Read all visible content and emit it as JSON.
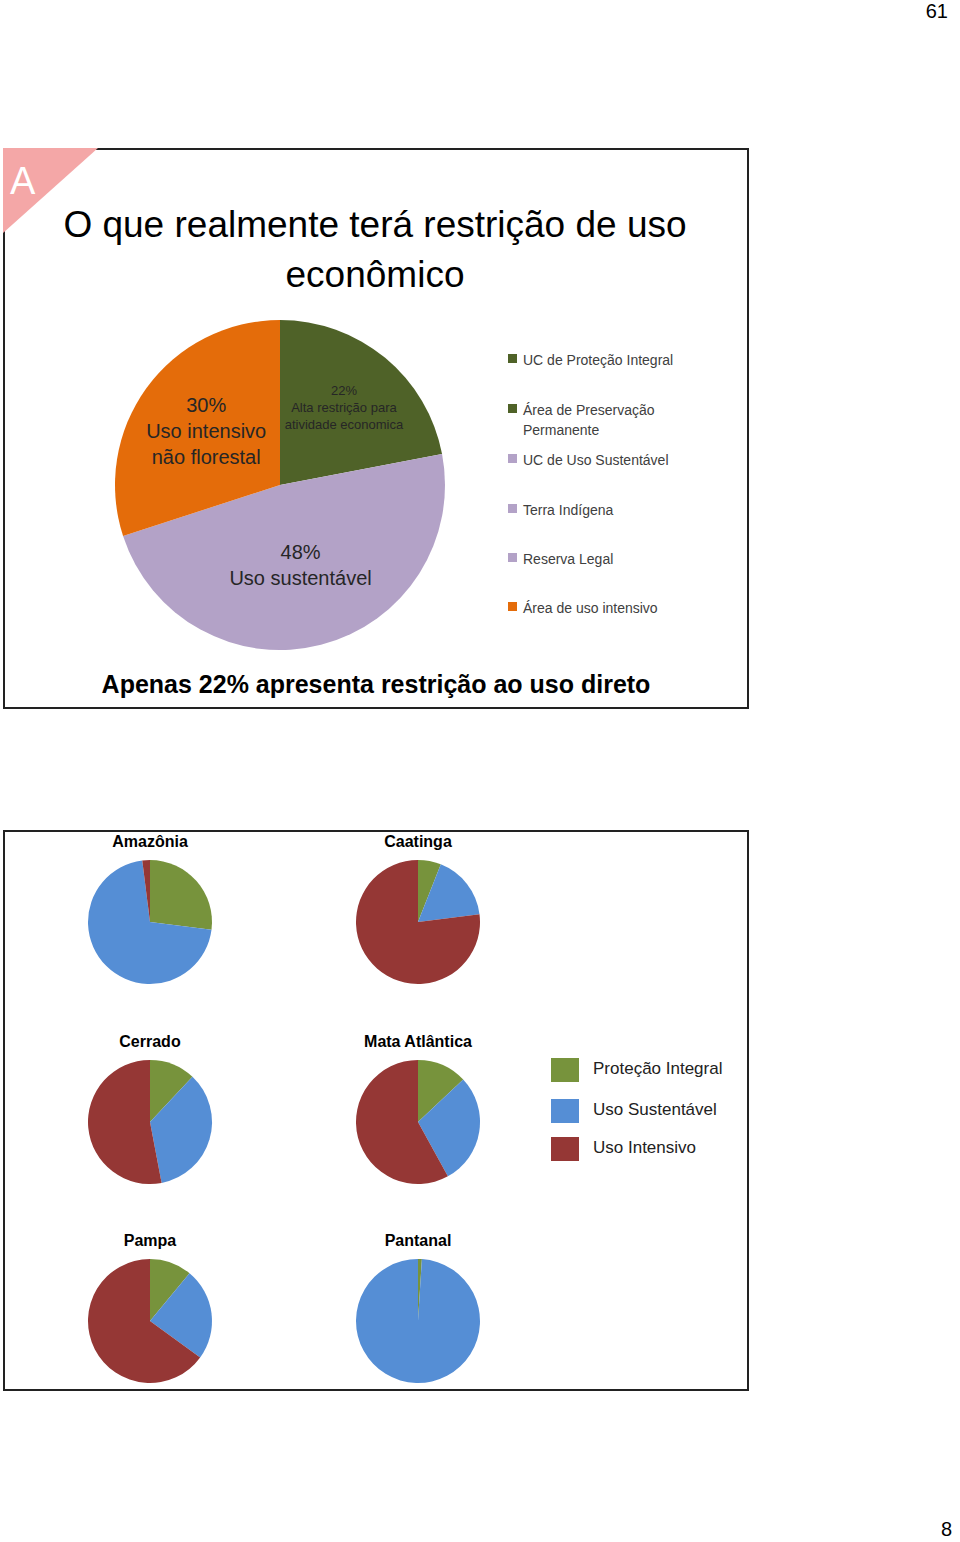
{
  "page": {
    "page_number": "61",
    "slide_number": "8",
    "slide_marker": "A"
  },
  "chart_data": [
    {
      "type": "pie",
      "title": "O que realmente terá restrição de uso econômico",
      "categories": [
        "Alta restrição para\natividade economica",
        "Uso sustentável",
        "Uso intensivo\nnão florestal"
      ],
      "values": [
        22,
        48,
        30
      ],
      "value_labels": [
        "22%",
        "48%",
        "30%"
      ],
      "colors": [
        "#4f6228",
        "#b3a2c7",
        "#e46c0a"
      ],
      "data_labels": true,
      "legend": "right",
      "legend_items": [
        {
          "name": "UC de Proteção Integral",
          "color": "#4f6228"
        },
        {
          "name": "Área de Preservação Permanente",
          "color": "#4f6228"
        },
        {
          "name": "UC de Uso Sustentável",
          "color": "#b3a2c7"
        },
        {
          "name": "Terra Indígena",
          "color": "#b3a2c7"
        },
        {
          "name": "Reserva Legal",
          "color": "#b3a2c7"
        },
        {
          "name": "Área de uso intensivo",
          "color": "#e46c0a"
        }
      ],
      "caption": "Apenas 22% apresenta restrição ao uso direto"
    },
    {
      "type": "pie",
      "title": "Amazônia",
      "categories": [
        "Proteção Integral",
        "Uso Sustentável",
        "Uso Intensivo"
      ],
      "values": [
        27,
        71,
        2
      ],
      "colors": [
        "#77933c",
        "#558ed5",
        "#953735"
      ],
      "legend": "right"
    },
    {
      "type": "pie",
      "title": "Caatinga",
      "categories": [
        "Proteção Integral",
        "Uso Sustentável",
        "Uso Intensivo"
      ],
      "values": [
        6,
        17,
        77
      ],
      "colors": [
        "#77933c",
        "#558ed5",
        "#953735"
      ],
      "legend": "right"
    },
    {
      "type": "pie",
      "title": "Cerrado",
      "categories": [
        "Proteção Integral",
        "Uso Sustentável",
        "Uso Intensivo"
      ],
      "values": [
        12,
        35,
        53
      ],
      "colors": [
        "#77933c",
        "#558ed5",
        "#953735"
      ],
      "legend": "right"
    },
    {
      "type": "pie",
      "title": "Mata Atlântica",
      "categories": [
        "Proteção Integral",
        "Uso Sustentável",
        "Uso Intensivo"
      ],
      "values": [
        13,
        29,
        58
      ],
      "colors": [
        "#77933c",
        "#558ed5",
        "#953735"
      ],
      "legend": "right"
    },
    {
      "type": "pie",
      "title": "Pampa",
      "categories": [
        "Proteção Integral",
        "Uso Sustentável",
        "Uso Intensivo"
      ],
      "values": [
        11,
        24,
        65
      ],
      "colors": [
        "#77933c",
        "#558ed5",
        "#953735"
      ],
      "legend": "right"
    },
    {
      "type": "pie",
      "title": "Pantanal",
      "categories": [
        "Proteção Integral",
        "Uso Sustentável",
        "Uso Intensivo"
      ],
      "values": [
        1,
        99,
        0
      ],
      "colors": [
        "#77933c",
        "#558ed5",
        "#953735"
      ],
      "legend": "right"
    }
  ]
}
